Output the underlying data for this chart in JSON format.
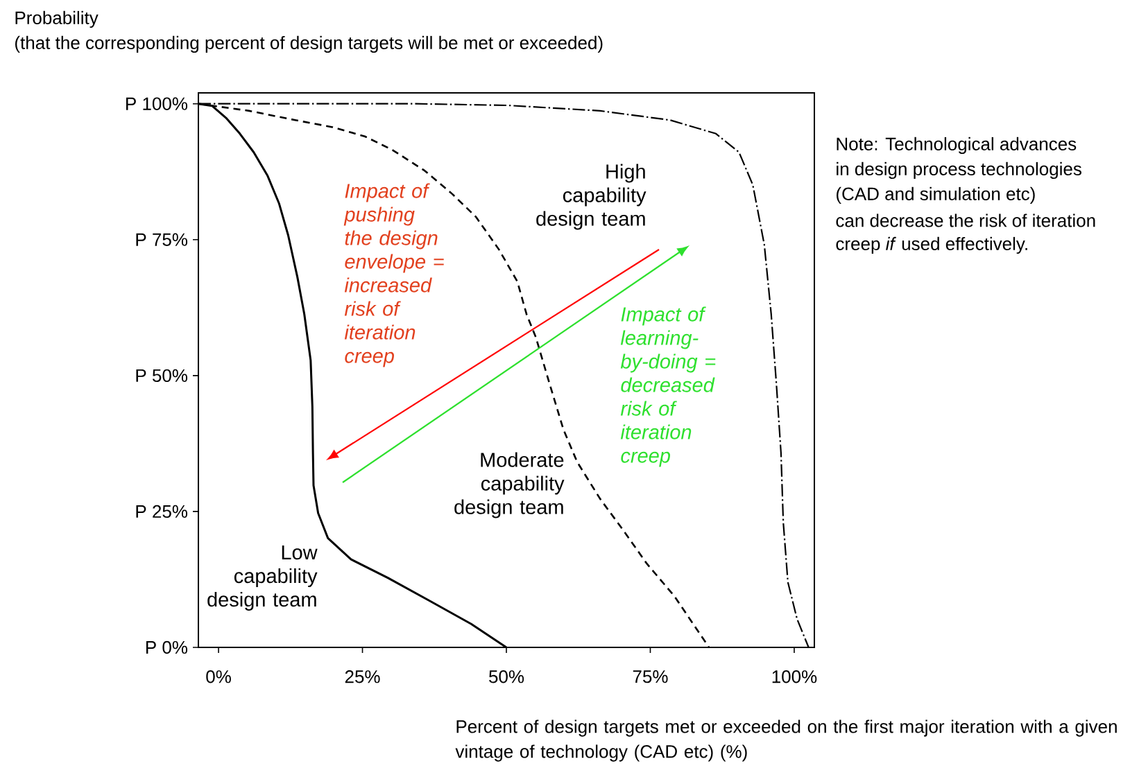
{
  "chart_data": {
    "type": "line",
    "ylabel": "Probability",
    "xlabel": "Percent of design targets met or exceeded on the first major iteration with a given vintage of technology (CAD etc) (%)",
    "xlim": [
      -3.5,
      103.5
    ],
    "ylim": [
      0,
      102
    ],
    "xticks": [
      {
        "value": 0,
        "label": "0%"
      },
      {
        "value": 25,
        "label": "25%"
      },
      {
        "value": 50,
        "label": "50%"
      },
      {
        "value": 75,
        "label": "75%"
      },
      {
        "value": 100,
        "label": "100%"
      }
    ],
    "yticks": [
      {
        "value": 0,
        "label": "0%"
      },
      {
        "value": 25,
        "label": "25%"
      },
      {
        "value": 50,
        "label": "50%"
      },
      {
        "value": 75,
        "label": "75%"
      },
      {
        "value": 100,
        "label": "100%"
      }
    ],
    "annotations": [
      "(that the corresponding percent of design targets will be met or exceeded)",
      "Impact of pushing the design envelope = increased risk of iteration creep",
      "Impact of learning-by-doing = decreased risk of iteration creep",
      "Note: Technological advances",
      "in design process technologies",
      "(CAD and simulation etc)",
      "can decrease the risk of iteration",
      "creep *if* used effectively.",
      "P"
    ],
    "series": [
      {
        "name": "Low capability design team",
        "color": "#000000",
        "line_style": "solid",
        "x": [
          -3.5,
          -1.1,
          1.3,
          3.7,
          6.1,
          8.5,
          10.5,
          12.1,
          13.7,
          14.9,
          16.0,
          16.3,
          16.4,
          16.5,
          17.3,
          19.0,
          23.0,
          29.4,
          36.6,
          43.9,
          50
        ],
        "values": [
          100,
          99.6,
          97.4,
          94.5,
          91.1,
          86.8,
          81.7,
          75.8,
          68.1,
          61.3,
          52.8,
          44.3,
          35.8,
          29.8,
          24.7,
          20.1,
          16.2,
          12.8,
          8.6,
          4.3,
          0
        ]
      },
      {
        "name": "Moderate capability design team",
        "color": "#000000",
        "line_style": "dashed",
        "x": [
          -3.5,
          5.3,
          13.3,
          19.8,
          25.4,
          30.2,
          35.8,
          40.6,
          44.7,
          48.7,
          51.9,
          53.5,
          55.1,
          57.5,
          59.9,
          62.3,
          66.3,
          70.4,
          74.4,
          79.2,
          85.2
        ],
        "values": [
          100,
          98.7,
          97.0,
          95.7,
          94.0,
          91.5,
          87.7,
          83.4,
          79.2,
          73.2,
          67.3,
          61.3,
          57.1,
          48.5,
          40.1,
          34.1,
          27.3,
          21.4,
          15.4,
          9.4,
          0
        ]
      },
      {
        "name": "High capability design team",
        "color": "#000000",
        "line_style": "dashdot",
        "x": [
          -3.5,
          10,
          34.2,
          50.3,
          66.3,
          78.4,
          86.4,
          90.4,
          92.8,
          94.8,
          96.0,
          96.9,
          97.7,
          98.1,
          98.9,
          100.5,
          102.5
        ],
        "values": [
          100,
          100,
          100,
          99.7,
          98.7,
          97.0,
          94.5,
          91.1,
          85.1,
          74.1,
          61.3,
          48.5,
          35.8,
          23.0,
          12.0,
          5.2,
          0
        ]
      }
    ]
  }
}
